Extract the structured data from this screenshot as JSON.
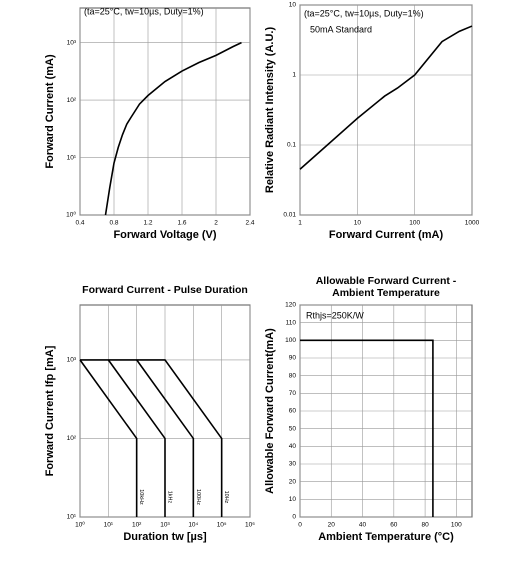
{
  "chart_data": [
    {
      "type": "line",
      "xlabel": "Forward Voltage (V)",
      "ylabel": "Forward Current (mA)",
      "annotations": [
        "(ta=25°C, tw=10µs, Duty=1%)"
      ],
      "xlim": [
        0.4,
        2.4
      ],
      "xticks": [
        0.4,
        0.8,
        1.2,
        1.6,
        2.0,
        2.4
      ],
      "ylog": true,
      "ylim": [
        1,
        4000
      ],
      "yticks": [
        {
          "value": 1,
          "label": "10⁰"
        },
        {
          "value": 10,
          "label": "10¹"
        },
        {
          "value": 100,
          "label": "10²"
        },
        {
          "value": 1000,
          "label": "10³"
        }
      ],
      "grid": true,
      "series": [
        {
          "color": "#000000",
          "x": [
            0.7,
            0.75,
            0.8,
            0.85,
            0.9,
            0.95,
            1.0,
            1.1,
            1.2,
            1.4,
            1.6,
            1.8,
            2.0,
            2.2,
            2.3
          ],
          "values": [
            1,
            3,
            8,
            15,
            25,
            38,
            50,
            85,
            120,
            210,
            320,
            450,
            600,
            850,
            1000
          ]
        }
      ]
    },
    {
      "type": "line",
      "xlabel": "Forward Current (mA)",
      "ylabel": "Relative Radiant Intensity (A.U.)",
      "annotations": [
        "(ta=25°C, tw=10µs, Duty=1%)",
        "50mA Standard"
      ],
      "xlog": true,
      "xlim": [
        1,
        1000
      ],
      "xticks": [
        1,
        10,
        100,
        1000
      ],
      "ylog": true,
      "ylim": [
        0.01,
        10
      ],
      "yticks": [
        0.01,
        0.1,
        1,
        10
      ],
      "grid": true,
      "series": [
        {
          "color": "#000000",
          "x": [
            1,
            3,
            10,
            30,
            50,
            100,
            300,
            600,
            1000
          ],
          "values": [
            0.045,
            0.1,
            0.24,
            0.5,
            0.65,
            1,
            3,
            4.2,
            5
          ]
        }
      ]
    },
    {
      "type": "line",
      "title": [
        "Forward Current - Pulse Duration"
      ],
      "xlabel": "Duration tw [µs]",
      "ylabel": "Forward Current Ifp [mA]",
      "xlog": true,
      "xlim": [
        1,
        1000000
      ],
      "xticks": [
        {
          "value": 1,
          "label": "10⁰"
        },
        {
          "value": 10,
          "label": "10¹"
        },
        {
          "value": 100,
          "label": "10²"
        },
        {
          "value": 1000,
          "label": "10³"
        },
        {
          "value": 10000,
          "label": "10⁴"
        },
        {
          "value": 100000,
          "label": "10⁵"
        },
        {
          "value": 1000000,
          "label": "10⁶"
        }
      ],
      "ylog": true,
      "ylim": [
        10,
        5000
      ],
      "yticks": [
        {
          "value": 10,
          "label": "10¹"
        },
        {
          "value": 100,
          "label": "10²"
        },
        {
          "value": 1000,
          "label": "10³"
        }
      ],
      "grid": true,
      "series": [
        {
          "name": "10kHz",
          "color": "#000000",
          "x": [
            1,
            100,
            100
          ],
          "values": [
            1000,
            100,
            10
          ]
        },
        {
          "name": "1kHz",
          "color": "#000000",
          "x": [
            10,
            1000,
            1000
          ],
          "values": [
            1000,
            100,
            10
          ]
        },
        {
          "name": "100Hz",
          "color": "#000000",
          "x": [
            100,
            10000,
            10000
          ],
          "values": [
            1000,
            100,
            10
          ]
        },
        {
          "name": "10Hz",
          "color": "#000000",
          "x": [
            1,
            1000,
            100000,
            100000
          ],
          "values": [
            1000,
            1000,
            100,
            10
          ]
        }
      ]
    },
    {
      "type": "line",
      "title": [
        "Allowable Forward Current -",
        "Ambient Temperature"
      ],
      "xlabel": "Ambient Temperature (°C)",
      "ylabel": "Allowable Forward Current(mA)",
      "annotations": [
        "Rthjs=250K/W"
      ],
      "xlim": [
        0,
        110
      ],
      "xticks": [
        0,
        20,
        40,
        60,
        80,
        100
      ],
      "ylim": [
        0,
        120
      ],
      "yticks": [
        0,
        10,
        20,
        30,
        40,
        50,
        60,
        70,
        80,
        90,
        100,
        110,
        120
      ],
      "grid": true,
      "series": [
        {
          "color": "#000000",
          "x": [
            0,
            85,
            85
          ],
          "values": [
            100,
            100,
            0
          ]
        }
      ]
    }
  ]
}
